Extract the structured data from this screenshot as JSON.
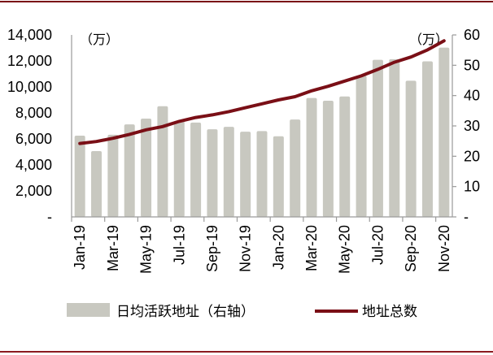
{
  "chart_data": {
    "type": "bar+line",
    "title": "",
    "categories": [
      "Jan-19",
      "Feb-19",
      "Mar-19",
      "Apr-19",
      "May-19",
      "Jun-19",
      "Jul-19",
      "Aug-19",
      "Sep-19",
      "Oct-19",
      "Nov-19",
      "Dec-19",
      "Jan-20",
      "Feb-20",
      "Mar-20",
      "Apr-20",
      "May-20",
      "Jun-20",
      "Jul-20",
      "Aug-20",
      "Sep-20",
      "Oct-20",
      "Nov-20"
    ],
    "x_tick_labels": [
      "Jan-19",
      "Mar-19",
      "May-19",
      "Jul-19",
      "Sep-19",
      "Nov-19",
      "Jan-20",
      "Mar-20",
      "May-20",
      "Jul-20",
      "Sep-20",
      "Nov-20"
    ],
    "series": [
      {
        "name": "日均活跃地址（右轴）",
        "type": "bar",
        "axis": "right",
        "color": "#c8c8c0",
        "values": [
          26.8,
          21.7,
          27.1,
          30.5,
          32.4,
          36.5,
          31.6,
          31.1,
          28.9,
          29.7,
          28.1,
          28.3,
          26.6,
          32.1,
          39.2,
          38.3,
          39.7,
          46.6,
          51.8,
          52.0,
          44.9,
          51.3,
          55.8
        ]
      },
      {
        "name": "地址总数",
        "type": "line",
        "axis": "left",
        "color": "#7a0f16",
        "values": [
          5650,
          5800,
          6050,
          6350,
          6700,
          6950,
          7350,
          7650,
          7850,
          8100,
          8400,
          8700,
          9000,
          9250,
          9700,
          10050,
          10450,
          10850,
          11350,
          11900,
          12300,
          12850,
          13550
        ]
      }
    ],
    "left_axis": {
      "unit_label": "（万）",
      "ticks": [
        "14,000",
        "12,000",
        "10,000",
        "8,000",
        "6,000",
        "4,000",
        "2,000",
        "-"
      ],
      "ylim": [
        0,
        14000
      ]
    },
    "right_axis": {
      "unit_label": "（万）",
      "ticks": [
        "60",
        "50",
        "40",
        "30",
        "20",
        "10",
        "-"
      ],
      "ylim": [
        0,
        60
      ]
    },
    "grid": false,
    "legend_position": "bottom"
  },
  "legend": {
    "bar_label": "日均活跃地址（右轴）",
    "line_label": "地址总数"
  },
  "colors": {
    "bar": "#c8c8c0",
    "line": "#7a0f16",
    "rule": "#7a0f16",
    "axis": "#9a9a9a"
  }
}
